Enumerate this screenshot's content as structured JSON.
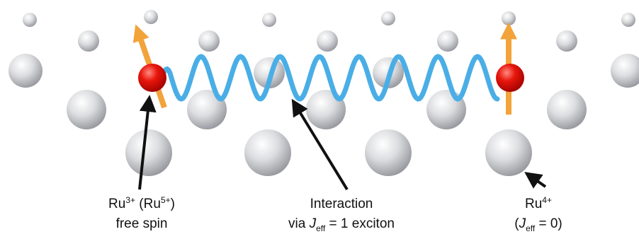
{
  "labels": [
    {
      "lines": [
        [
          {
            "text": "Ru",
            "style": "normal"
          },
          {
            "text": "3+",
            "style": "sup"
          },
          {
            "text": " (Ru",
            "style": "normal"
          },
          {
            "text": "5+",
            "style": "sup"
          },
          {
            "text": ")",
            "style": "normal"
          }
        ],
        [
          {
            "text": "free spin",
            "style": "normal"
          }
        ]
      ]
    },
    {
      "lines": [
        [
          {
            "text": "Interaction",
            "style": "normal"
          }
        ],
        [
          {
            "text": "via ",
            "style": "normal"
          },
          {
            "text": "J",
            "style": "italic"
          },
          {
            "text": "eff",
            "style": "sub"
          },
          {
            "text": " = 1 exciton",
            "style": "normal"
          }
        ]
      ]
    },
    {
      "lines": [
        [
          {
            "text": "Ru",
            "style": "normal"
          },
          {
            "text": "4+",
            "style": "sup"
          }
        ],
        [
          {
            "text": "(",
            "style": "normal"
          },
          {
            "text": "J",
            "style": "italic"
          },
          {
            "text": "eff",
            "style": "sub"
          },
          {
            "text": " = 0)",
            "style": "normal"
          }
        ]
      ]
    }
  ]
}
